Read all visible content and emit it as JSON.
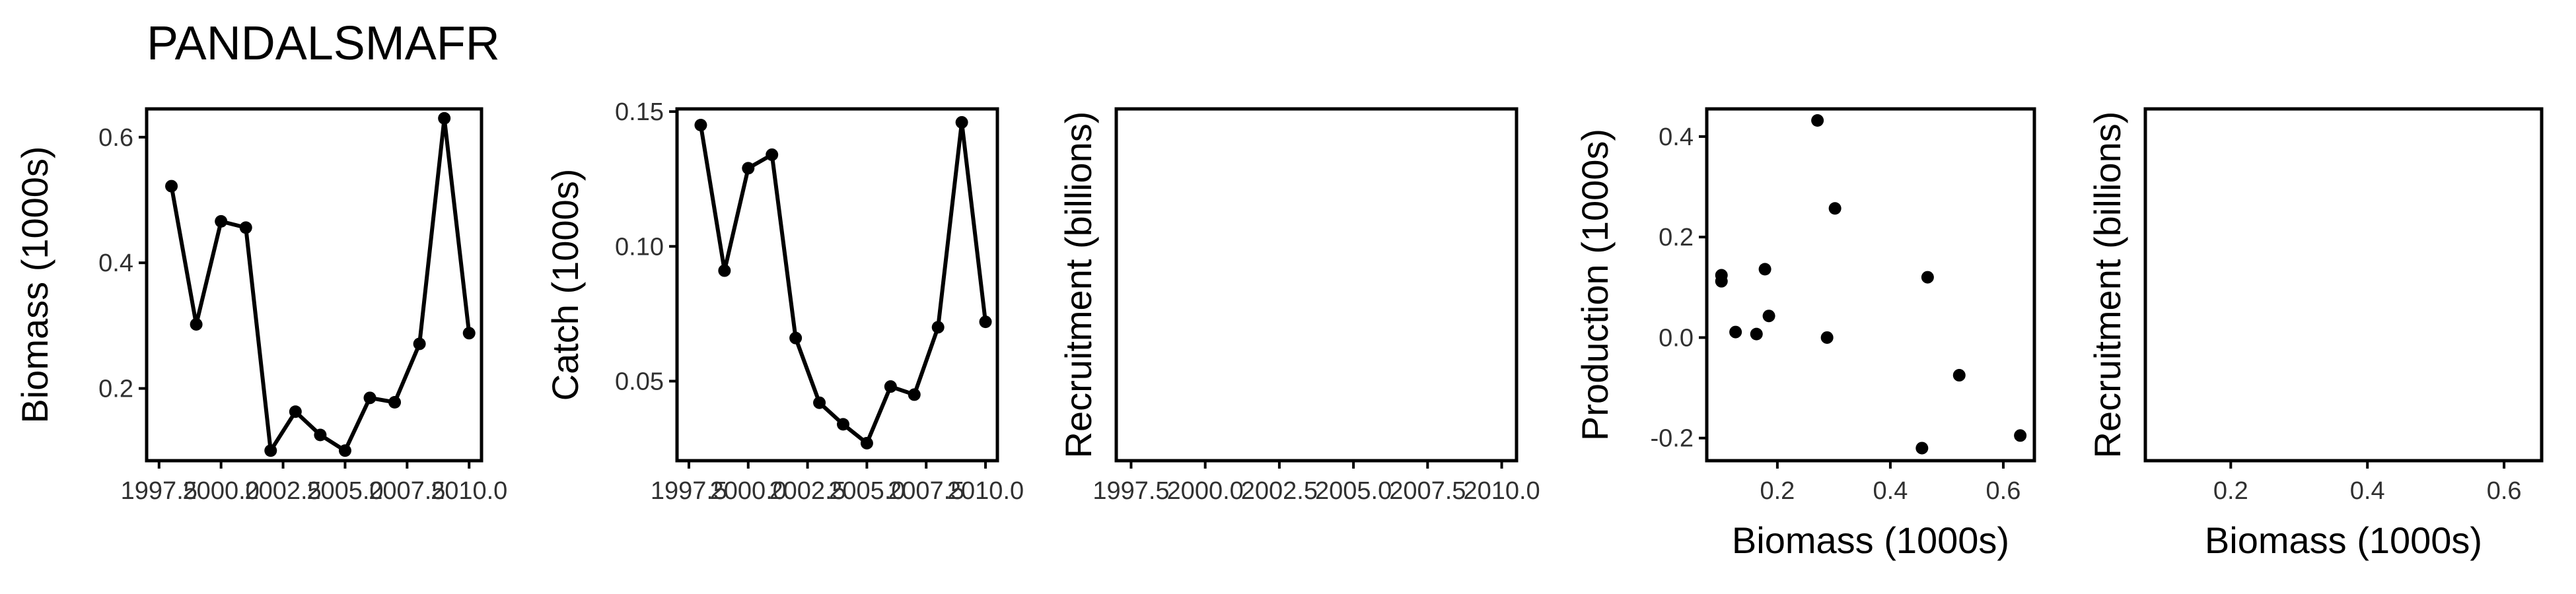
{
  "title": "PANDALSMAFR",
  "chart_data": [
    {
      "type": "line",
      "xlabel": "",
      "ylabel": "Biomass (1000s)",
      "xlim": [
        1997.0,
        2010.5
      ],
      "ylim": [
        0.085,
        0.645
      ],
      "xticks": [
        1997.5,
        2000.0,
        2002.5,
        2005.0,
        2007.5,
        2010.0
      ],
      "xtick_labels": [
        "1997.5",
        "2000.0",
        "2002.5",
        "2005.0",
        "2007.5",
        "2010.0"
      ],
      "yticks": [
        0.2,
        0.4,
        0.6
      ],
      "ytick_labels": [
        "0.2",
        "0.4",
        "0.6"
      ],
      "x": [
        1998,
        1999,
        2000,
        2001,
        2002,
        2003,
        2004,
        2005,
        2006,
        2007,
        2008,
        2009,
        2010
      ],
      "y": [
        0.522,
        0.302,
        0.466,
        0.456,
        0.101,
        0.163,
        0.126,
        0.101,
        0.185,
        0.178,
        0.271,
        0.63,
        0.288
      ]
    },
    {
      "type": "line",
      "xlabel": "",
      "ylabel": "Catch (1000s)",
      "xlim": [
        1997.0,
        2010.5
      ],
      "ylim": [
        0.0205,
        0.151
      ],
      "xticks": [
        1997.5,
        2000.0,
        2002.5,
        2005.0,
        2007.5,
        2010.0
      ],
      "xtick_labels": [
        "1997.5",
        "2000.0",
        "2002.5",
        "2005.0",
        "2007.5",
        "2010.0"
      ],
      "yticks": [
        0.05,
        0.1,
        0.15
      ],
      "ytick_labels": [
        "0.05",
        "0.10",
        "0.15"
      ],
      "x": [
        1998,
        1999,
        2000,
        2001,
        2002,
        2003,
        2004,
        2005,
        2006,
        2007,
        2008,
        2009,
        2010
      ],
      "y": [
        0.145,
        0.091,
        0.129,
        0.134,
        0.066,
        0.042,
        0.034,
        0.027,
        0.048,
        0.045,
        0.07,
        0.146,
        0.072
      ]
    },
    {
      "type": "scatter",
      "xlabel": "",
      "ylabel": "Recruitment (billions)",
      "xlim": [
        1997.0,
        2010.5
      ],
      "xticks": [
        1997.5,
        2000.0,
        2002.5,
        2005.0,
        2007.5,
        2010.0
      ],
      "xtick_labels": [
        "1997.5",
        "2000.0",
        "2002.5",
        "2005.0",
        "2007.5",
        "2010.0"
      ],
      "x": [],
      "y": []
    },
    {
      "type": "scatter",
      "xlabel": "Biomass (1000s)",
      "ylabel": "Production (1000s)",
      "xlim": [
        0.075,
        0.655
      ],
      "ylim": [
        -0.245,
        0.455
      ],
      "xticks": [
        0.2,
        0.4,
        0.6
      ],
      "xtick_labels": [
        "0.2",
        "0.4",
        "0.6"
      ],
      "yticks": [
        -0.2,
        0.0,
        0.2,
        0.4
      ],
      "ytick_labels": [
        "-0.2",
        "0.0",
        "0.2",
        "0.4"
      ],
      "x": [
        0.101,
        0.101,
        0.126,
        0.163,
        0.178,
        0.185,
        0.271,
        0.288,
        0.302,
        0.456,
        0.466,
        0.522,
        0.63
      ],
      "y": [
        0.124,
        0.112,
        0.011,
        0.007,
        0.136,
        0.043,
        0.432,
        0.0,
        0.257,
        -0.22,
        0.12,
        -0.075,
        -0.195
      ]
    },
    {
      "type": "scatter",
      "xlabel": "Biomass (1000s)",
      "ylabel": "Recruitment (billions)",
      "xlim": [
        0.075,
        0.655
      ],
      "xticks": [
        0.2,
        0.4,
        0.6
      ],
      "xtick_labels": [
        "0.2",
        "0.4",
        "0.6"
      ],
      "x": [],
      "y": []
    }
  ]
}
